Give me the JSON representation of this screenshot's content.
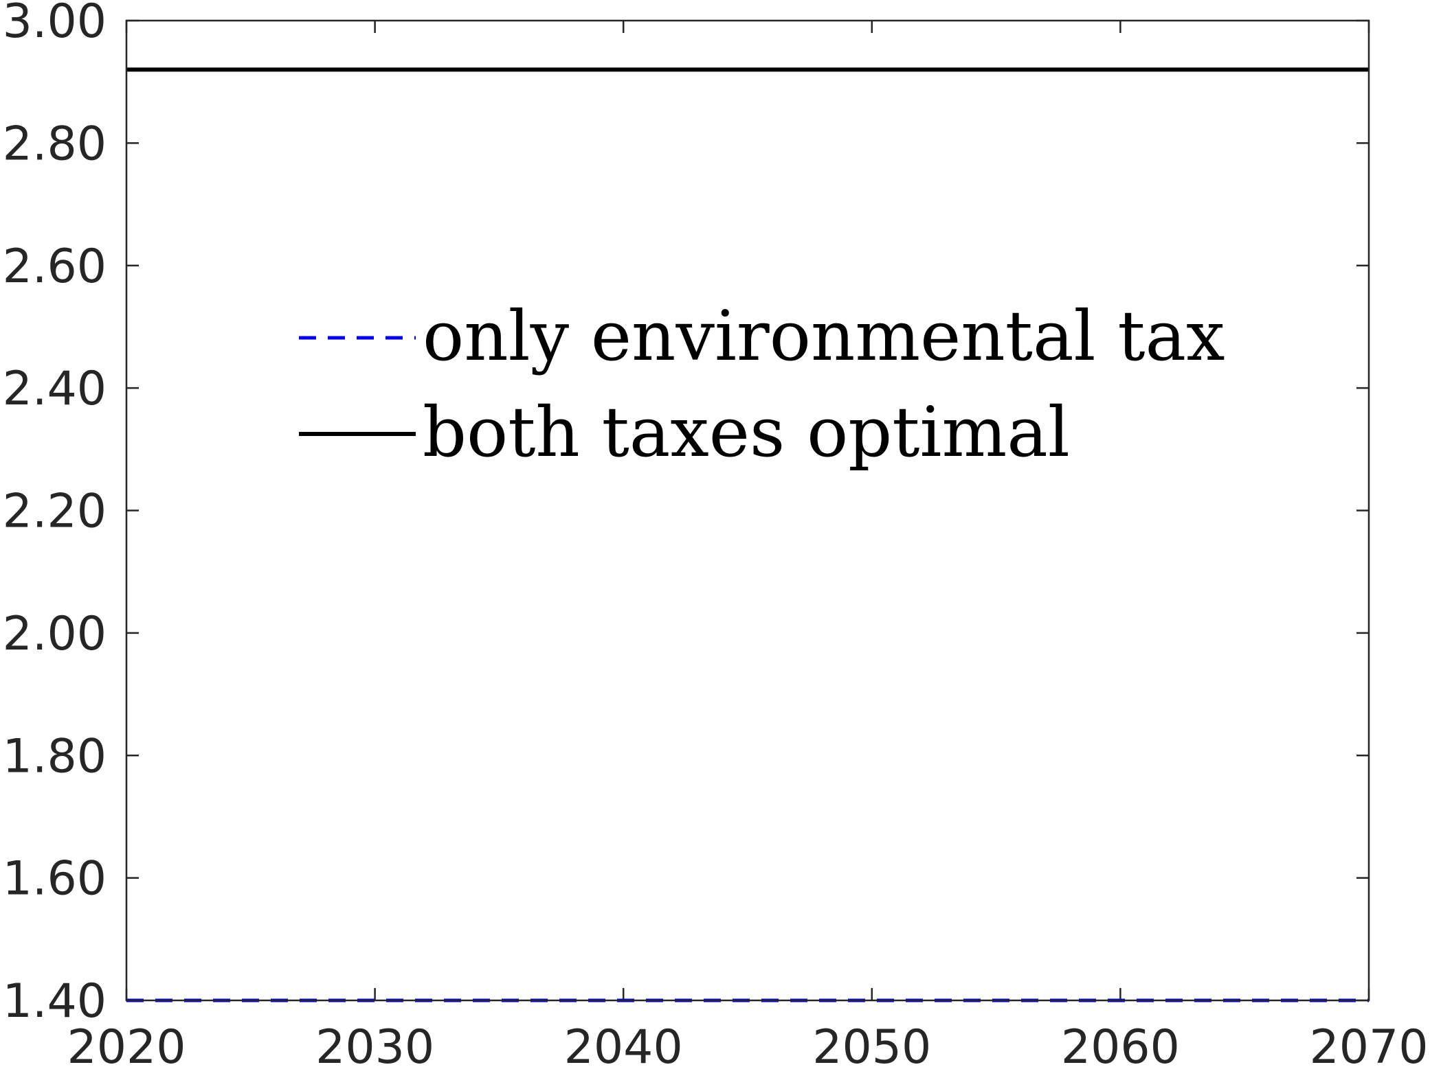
{
  "chart_data": {
    "type": "line",
    "title": "",
    "xlabel": "",
    "ylabel": "",
    "xlim": [
      2020,
      2070
    ],
    "ylim": [
      1.4,
      3.0
    ],
    "x_ticks": [
      "2020",
      "2030",
      "2040",
      "2050",
      "2060",
      "2070"
    ],
    "y_ticks": [
      "1.40",
      "1.60",
      "1.80",
      "2.00",
      "2.20",
      "2.40",
      "2.60",
      "2.80",
      "3.00"
    ],
    "grid": false,
    "legend_position": "upper-center",
    "series": [
      {
        "name": "only environmental tax",
        "style": "dashed",
        "color": "#0000ff",
        "x": [
          2020,
          2030,
          2040,
          2050,
          2060,
          2070
        ],
        "y": [
          1.4,
          1.4,
          1.4,
          1.4,
          1.4,
          1.4
        ]
      },
      {
        "name": "both taxes optimal",
        "style": "solid",
        "color": "#000000",
        "x": [
          2020,
          2030,
          2040,
          2050,
          2060,
          2070
        ],
        "y": [
          2.92,
          2.92,
          2.92,
          2.92,
          2.92,
          2.92
        ]
      }
    ]
  }
}
